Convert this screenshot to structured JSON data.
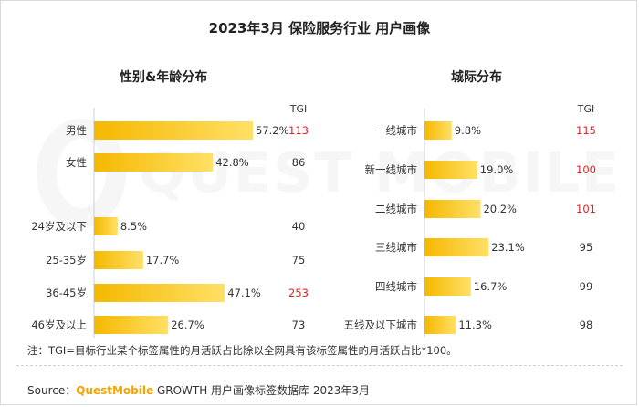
{
  "title": "2023年3月 保险服务行业 用户画像",
  "note": "注：TGI=目标行业某个标签属性的月活跃占比除以全网具有该标签属性的月活跃占比*100。",
  "source": {
    "prefix": "Source：",
    "brand": "QuestMobile",
    "suffix": " GROWTH 用户画像标签数据库 2023年3月"
  },
  "watermark_text": "QUEST MOBILE",
  "colors": {
    "bar_start": "#f5b800",
    "bar_end": "#ffe066",
    "tgi_high": "#e02020",
    "text": "#333333"
  },
  "chart_data": [
    {
      "type": "bar",
      "orientation": "horizontal",
      "title": "性别&年龄分布",
      "tgi_header": "TGI",
      "xlim": [
        0,
        60
      ],
      "groups": [
        {
          "label": "",
          "categories": [
            "男性",
            "女性"
          ],
          "values": [
            57.2,
            42.8
          ],
          "tgi": [
            113,
            86
          ]
        },
        {
          "label": "",
          "categories": [
            "24岁及以下",
            "25-35岁",
            "36-45岁",
            "46岁及以上"
          ],
          "values": [
            8.5,
            17.7,
            47.1,
            26.7
          ],
          "tgi": [
            40,
            75,
            253,
            73
          ]
        }
      ],
      "value_suffix": "%",
      "tgi_highlight_threshold": 100
    },
    {
      "type": "bar",
      "orientation": "horizontal",
      "title": "城际分布",
      "tgi_header": "TGI",
      "xlim": [
        0,
        60
      ],
      "categories": [
        "一线城市",
        "新一线城市",
        "二线城市",
        "三线城市",
        "四线城市",
        "五线及以下城市"
      ],
      "values": [
        9.8,
        19.0,
        20.2,
        23.1,
        16.7,
        11.3
      ],
      "tgi": [
        115,
        100,
        101,
        95,
        99,
        98
      ],
      "tgi_highlighted": [
        true,
        true,
        true,
        false,
        false,
        false
      ],
      "value_suffix": "%"
    }
  ]
}
